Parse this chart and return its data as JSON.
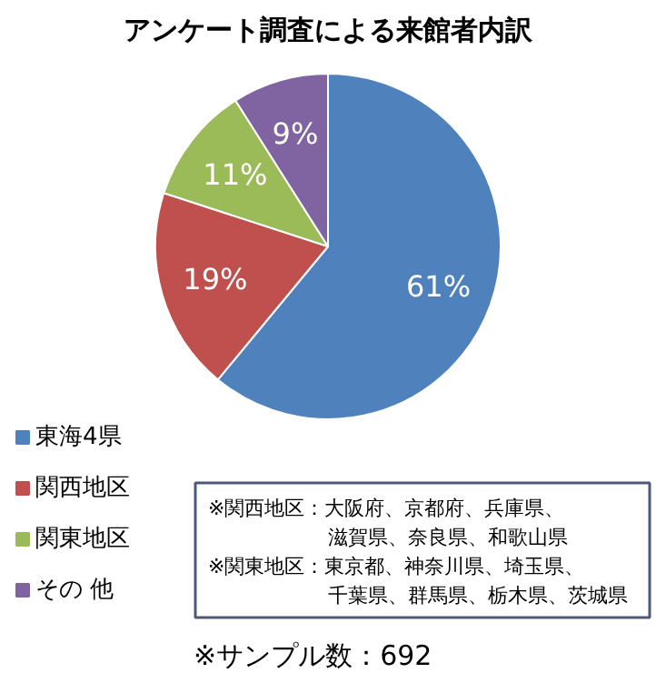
{
  "chart_data": {
    "type": "pie",
    "title": "アンケート調査による来館者内訳",
    "categories": [
      "東海4県",
      "関西地区",
      "関東地区",
      "その 他"
    ],
    "values": [
      61,
      19,
      11,
      9
    ],
    "value_labels": [
      "61%",
      "19%",
      "11%",
      "9%"
    ],
    "colors": [
      "#4f81bd",
      "#c0504d",
      "#9bbb59",
      "#8064a2"
    ],
    "legend": "bottom left",
    "annotations": [
      "※関西地区：大阪府、京都府、兵庫県、滋賀県、奈良県、和歌山県",
      "※関東地区：東京都、神奈川県、埼玉県、千葉県、群馬県、栃木県、茨城県",
      "※サンプル数：692"
    ]
  }
}
